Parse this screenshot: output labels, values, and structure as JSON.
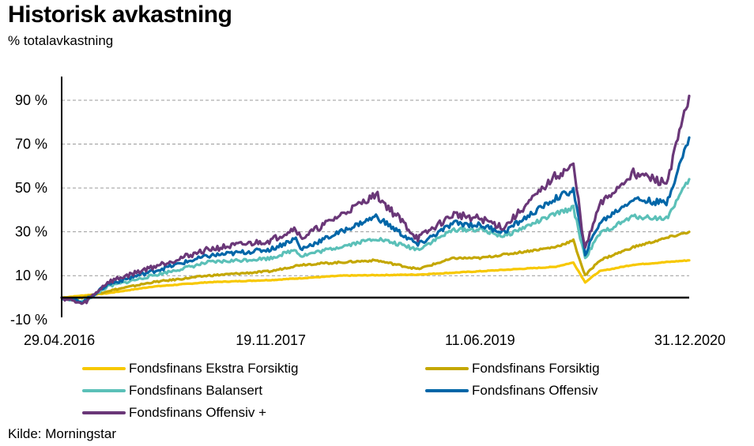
{
  "title": "Historisk avkastning",
  "subtitle": "% totalavkastning",
  "source": "Kilde: Morningstar",
  "chart_data": {
    "type": "line",
    "x_ticks": [
      "29.04.2016",
      "19.11.2017",
      "11.06.2019",
      "31.12.2020"
    ],
    "y_ticks": [
      "90 %",
      "70 %",
      "50 %",
      "30 %",
      "10 %",
      "-10 %"
    ],
    "y_tick_values": [
      90,
      70,
      50,
      30,
      10,
      -10
    ],
    "ylim": [
      -10,
      100
    ],
    "xlim": [
      "2016-04-29",
      "2020-12-31"
    ],
    "grid": "horizontal-dashed",
    "legend_position": "bottom",
    "series": [
      {
        "name": "Fondsfinans Ekstra Forsiktig",
        "color": "#f7c800",
        "points": [
          [
            "2016-04-29",
            0
          ],
          [
            "2016-09-01",
            2
          ],
          [
            "2017-01-01",
            5
          ],
          [
            "2017-06-01",
            7
          ],
          [
            "2017-11-19",
            8
          ],
          [
            "2018-06-01",
            10
          ],
          [
            "2018-12-24",
            10.5
          ],
          [
            "2019-06-11",
            12
          ],
          [
            "2019-12-31",
            14
          ],
          [
            "2020-02-20",
            16
          ],
          [
            "2020-03-23",
            7
          ],
          [
            "2020-05-01",
            12
          ],
          [
            "2020-08-01",
            15
          ],
          [
            "2020-12-31",
            17
          ]
        ]
      },
      {
        "name": "Fondsfinans Forsiktig",
        "color": "#c4a700",
        "points": [
          [
            "2016-04-29",
            0
          ],
          [
            "2016-06-01",
            -1
          ],
          [
            "2016-09-01",
            3
          ],
          [
            "2017-01-01",
            7
          ],
          [
            "2017-06-01",
            10
          ],
          [
            "2017-11-19",
            12
          ],
          [
            "2018-02-08",
            15
          ],
          [
            "2018-09-01",
            17
          ],
          [
            "2018-12-24",
            13
          ],
          [
            "2019-04-01",
            18
          ],
          [
            "2019-06-11",
            18
          ],
          [
            "2019-12-31",
            23
          ],
          [
            "2020-02-20",
            26
          ],
          [
            "2020-03-23",
            10
          ],
          [
            "2020-05-01",
            17
          ],
          [
            "2020-08-01",
            23
          ],
          [
            "2020-12-31",
            30
          ]
        ]
      },
      {
        "name": "Fondsfinans Balansert",
        "color": "#5bc0b8",
        "points": [
          [
            "2016-04-29",
            0
          ],
          [
            "2016-06-27",
            -2
          ],
          [
            "2016-09-01",
            5
          ],
          [
            "2017-01-01",
            10
          ],
          [
            "2017-06-01",
            16
          ],
          [
            "2017-11-19",
            18
          ],
          [
            "2018-01-26",
            22
          ],
          [
            "2018-02-08",
            19
          ],
          [
            "2018-09-01",
            27
          ],
          [
            "2018-12-24",
            22
          ],
          [
            "2019-04-01",
            31
          ],
          [
            "2019-06-11",
            31
          ],
          [
            "2019-08-15",
            28
          ],
          [
            "2019-12-31",
            38
          ],
          [
            "2020-02-20",
            41
          ],
          [
            "2020-03-23",
            18
          ],
          [
            "2020-05-01",
            29
          ],
          [
            "2020-08-01",
            37
          ],
          [
            "2020-10-30",
            36
          ],
          [
            "2020-12-31",
            54
          ]
        ]
      },
      {
        "name": "Fondsfinans Offensiv",
        "color": "#0066a8",
        "points": [
          [
            "2016-04-29",
            0
          ],
          [
            "2016-06-27",
            -2
          ],
          [
            "2016-09-01",
            6
          ],
          [
            "2017-01-01",
            12
          ],
          [
            "2017-06-01",
            19
          ],
          [
            "2017-11-19",
            22
          ],
          [
            "2018-01-26",
            27
          ],
          [
            "2018-02-08",
            22
          ],
          [
            "2018-09-01",
            37
          ],
          [
            "2018-12-24",
            24
          ],
          [
            "2019-04-01",
            34
          ],
          [
            "2019-06-11",
            33
          ],
          [
            "2019-08-15",
            30
          ],
          [
            "2019-12-31",
            45
          ],
          [
            "2020-02-20",
            49
          ],
          [
            "2020-03-23",
            20
          ],
          [
            "2020-05-01",
            34
          ],
          [
            "2020-08-01",
            45
          ],
          [
            "2020-10-30",
            43
          ],
          [
            "2020-12-31",
            73
          ]
        ]
      },
      {
        "name": "Fondsfinans Offensiv +",
        "color": "#6a3778",
        "points": [
          [
            "2016-04-29",
            0
          ],
          [
            "2016-06-27",
            -3
          ],
          [
            "2016-09-01",
            7
          ],
          [
            "2017-01-01",
            14
          ],
          [
            "2017-06-01",
            22
          ],
          [
            "2017-11-19",
            26
          ],
          [
            "2018-01-26",
            32
          ],
          [
            "2018-02-08",
            27
          ],
          [
            "2018-09-01",
            47
          ],
          [
            "2018-12-24",
            27
          ],
          [
            "2019-04-01",
            38
          ],
          [
            "2019-06-11",
            36
          ],
          [
            "2019-08-15",
            32
          ],
          [
            "2019-12-31",
            55
          ],
          [
            "2020-02-20",
            60
          ],
          [
            "2020-03-23",
            22
          ],
          [
            "2020-05-01",
            42
          ],
          [
            "2020-08-01",
            57
          ],
          [
            "2020-10-30",
            52
          ],
          [
            "2020-12-31",
            92
          ]
        ]
      }
    ]
  }
}
